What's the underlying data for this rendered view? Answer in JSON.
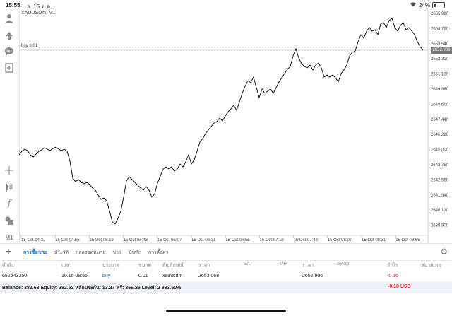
{
  "status_bar": {
    "time": "15:55",
    "date": "อ. 15 ต.ค.",
    "battery": "24%",
    "battery_level": 0.24
  },
  "chart": {
    "symbol_title": "XAUUSDm, M1",
    "order_line_label": "buy 0.01",
    "current_price_tag": "2652.906",
    "price_axis": [
      "2655.980",
      "2654.760",
      "2653.540",
      "2652.320",
      "2651.100",
      "2649.880",
      "2648.660",
      "2647.440",
      "2646.220",
      "2645.000",
      "2643.780",
      "2642.560",
      "2641.340",
      "2640.120",
      "2638.900"
    ],
    "time_axis": [
      "15 Oct 04:31",
      "15 Oct 04:55",
      "15 Oct 05:19",
      "15 Oct 05:43",
      "15 Oct 06:07",
      "15 Oct 06:31",
      "15 Oct 06:55",
      "15 Oct 07:19",
      "15 Oct 07:43",
      "15 Oct 08:07",
      "15 Oct 08:31",
      "15 Oct 08:55"
    ],
    "line_color": "#000000"
  },
  "left_toolbar": {
    "icons": [
      "account-icon",
      "trade-arrows-icon",
      "chat-icon",
      "new-order-icon",
      "crosshair-icon",
      "candles-icon",
      "indicator-icon",
      "objects-icon"
    ],
    "timeframe": "M1"
  },
  "bottom_toolbar": {
    "tabs": [
      "การซื้อขาย",
      "ประวัติ",
      "กล่องจดหมาย",
      "ข่าว",
      "บันทึก",
      "การตั้งค่า"
    ],
    "active_tab": "การซื้อขาย"
  },
  "trade_table": {
    "headers": [
      "คำสั่ง",
      "เวลา",
      "ประเภท",
      "ขนาด",
      "สัญลักษณ์",
      "ราคา",
      "S/L",
      "T/P",
      "ราคา",
      "Swap",
      "กำไร",
      "หมายเหตุ"
    ],
    "rows": [
      {
        "order": "652543350",
        "time": "10.15 08:55",
        "type": "buy",
        "size": "0.01",
        "symbol": "xauusdm",
        "price": "2653.068",
        "sl": "",
        "tp": "",
        "price_current": "2652.906",
        "swap": "",
        "profit": "-0.16",
        "comment": ""
      }
    ]
  },
  "balance_line": {
    "text": "Balance: 382.68 Equity: 382.52 หลักประกัน: 13.27 ฟรี: 369.25 Level: 2 883.60%",
    "profit": "-0.16  USD"
  },
  "colors": {
    "accent": "#1a73d9",
    "loss": "#d43030"
  }
}
